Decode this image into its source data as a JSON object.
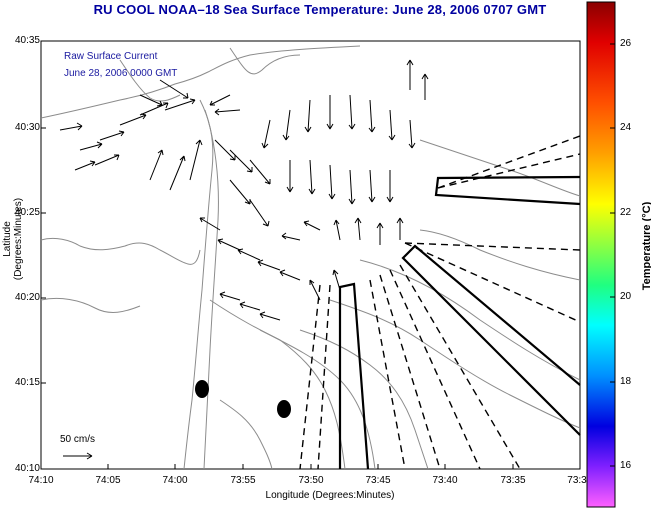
{
  "title": "RU COOL   NOAA–18   Sea Surface Temperature:  June 28, 2006 0707 GMT",
  "legend": {
    "line1": "Raw Surface Current",
    "line2": "June 28, 2006 0000 GMT"
  },
  "axes": {
    "xlabel": "Longitude (Degrees:Minutes)",
    "ylabel": "Latitude (Degrees:Minutes)",
    "xticks": [
      "74:10",
      "74:05",
      "74:00",
      "73:55",
      "73:50",
      "73:45",
      "73:40",
      "73:35",
      "73:3"
    ],
    "yticks": [
      "40:35",
      "40:30",
      "40:25",
      "40:20",
      "40:15",
      "40:10"
    ]
  },
  "colorbar": {
    "label": "Temperature (°C)",
    "ticks": [
      "26",
      "24",
      "22",
      "20",
      "18",
      "16"
    ]
  },
  "scale": {
    "label": "50 cm/s"
  },
  "colors": {
    "title": "#0000a0",
    "legend_text": "#1a1aa0",
    "land_contour": "#8c8c8c",
    "vectors": "#000000"
  }
}
